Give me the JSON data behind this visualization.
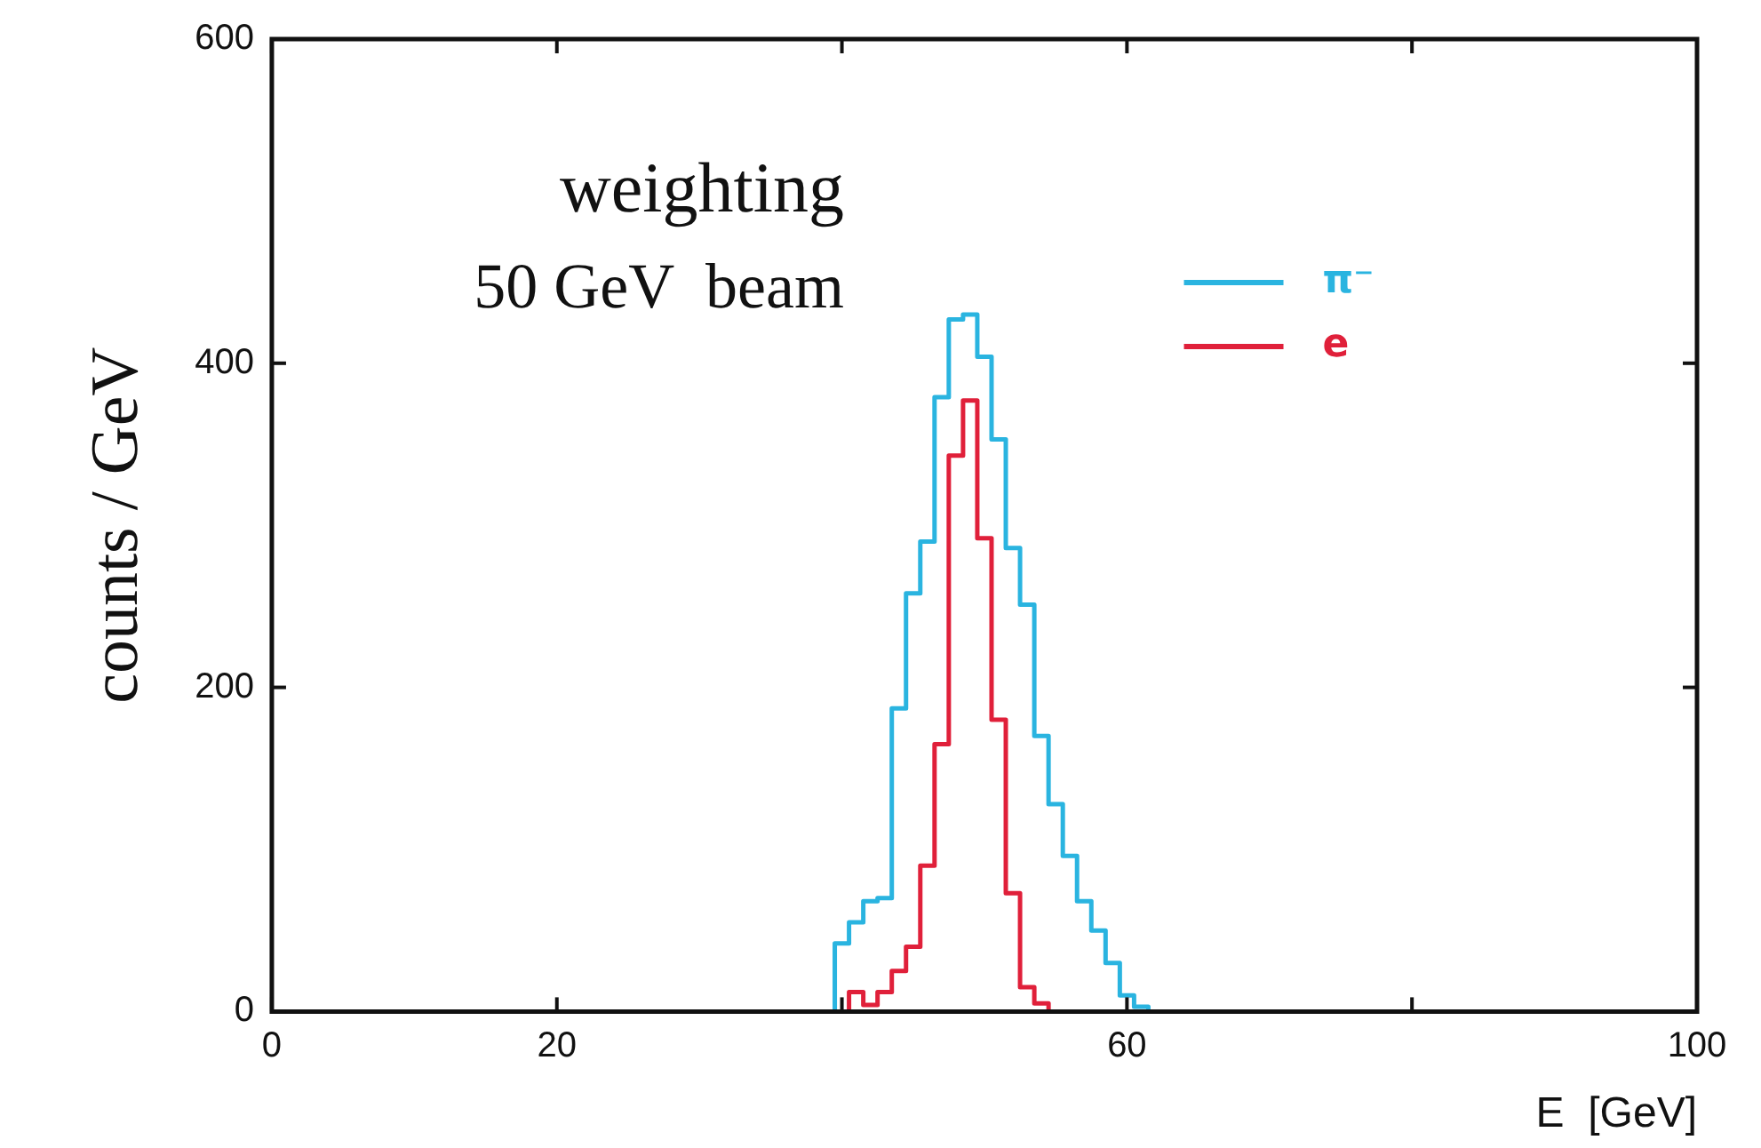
{
  "chart_data": {
    "type": "histogram",
    "xlabel": "E  [GeV]",
    "ylabel": "counts / GeV",
    "annotations": [
      "weighting",
      "50 GeV  beam"
    ],
    "bins": [
      39.5,
      40.5,
      41.5,
      42.5,
      43.5,
      44.5,
      45.5,
      46.5,
      47.5,
      48.5,
      49.5,
      50.5,
      51.5,
      52.5,
      53.5,
      54.5,
      55.5,
      56.5,
      57.5,
      58.5,
      59.5,
      60.5,
      61.5
    ],
    "series": [
      {
        "name": "π⁻",
        "color": "#2ab4e0",
        "values": [
          42,
          55,
          68,
          70,
          187,
          258,
          290,
          379,
          427,
          430,
          404,
          353,
          286,
          251,
          170,
          128,
          96,
          68,
          50,
          30,
          10,
          3
        ]
      },
      {
        "name": "e",
        "color": "#e0203a",
        "values": [
          0,
          12,
          4,
          12,
          25,
          40,
          90,
          165,
          343,
          377,
          292,
          180,
          73,
          15,
          5,
          0,
          0,
          0,
          0,
          0,
          0,
          0
        ]
      }
    ],
    "xlim": [
      0,
      100
    ],
    "xticks": [
      0,
      20,
      {
        "value": 40,
        "label": null
      },
      60,
      {
        "value": 80,
        "label": null
      },
      100
    ],
    "ylim": [
      0,
      600
    ],
    "yticks": [
      0,
      200,
      400,
      600
    ],
    "grid": false,
    "legend": "top right"
  }
}
